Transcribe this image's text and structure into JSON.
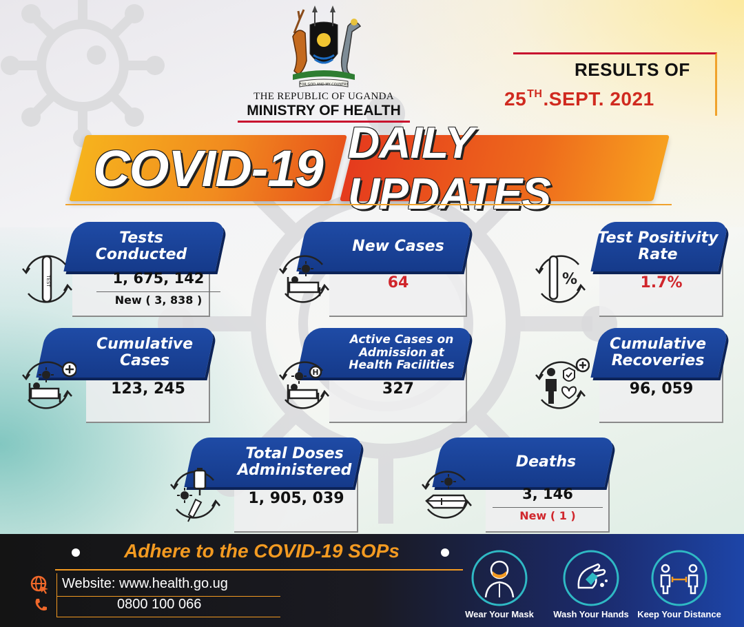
{
  "header": {
    "republic": "THE REPUBLIC OF UGANDA",
    "ministry": "MINISTRY OF HEALTH",
    "crest_motto": "FOR GOD AND MY COUNTRY"
  },
  "results": {
    "title": "RESULTS OF",
    "day": "25",
    "day_suffix": "TH",
    "rest": ".SEPT. 2021"
  },
  "banner": {
    "left": "COVID-19",
    "right": "DAILY UPDATES"
  },
  "cards": {
    "tests": {
      "label": "Tests Conducted",
      "value": "1, 675, 142",
      "sub": "New ( 3, 838 )",
      "icon": "test-tube-icon"
    },
    "new_cases": {
      "label": "New Cases",
      "value": "64",
      "icon": "patient-bed-icon"
    },
    "positivity": {
      "label": "Test Positivity Rate",
      "value": "1.7%",
      "icon": "test-tube-percent-icon",
      "icon_text": "%"
    },
    "cumulative": {
      "label": "Cumulative Cases",
      "value": "123, 245",
      "icon": "patient-bed-plus-icon"
    },
    "active": {
      "label": "Active Cases on Admission at Health Facilities",
      "value": "327",
      "icon": "hospital-bed-icon",
      "icon_text": "H"
    },
    "recoveries": {
      "label": "Cumulative Recoveries",
      "value": "96, 059",
      "icon": "recovered-person-icon"
    },
    "doses": {
      "label": "Total Doses Administered",
      "value": "1, 905, 039",
      "icon": "vaccine-syringe-icon"
    },
    "deaths": {
      "label": "Deaths",
      "value": "3, 146",
      "sub": "New ( 1 )",
      "icon": "coffin-icon"
    }
  },
  "footer": {
    "sop": "Adhere to the COVID-19 SOPs",
    "website": "Website: www.health.go.ug",
    "phone": "0800 100 066",
    "actions": [
      "Wear Your Mask",
      "Wash Your Hands",
      "Keep Your Distance"
    ]
  },
  "colors": {
    "blue": "#1f4ba6",
    "orange": "#f39a21",
    "red": "#d0262c"
  }
}
